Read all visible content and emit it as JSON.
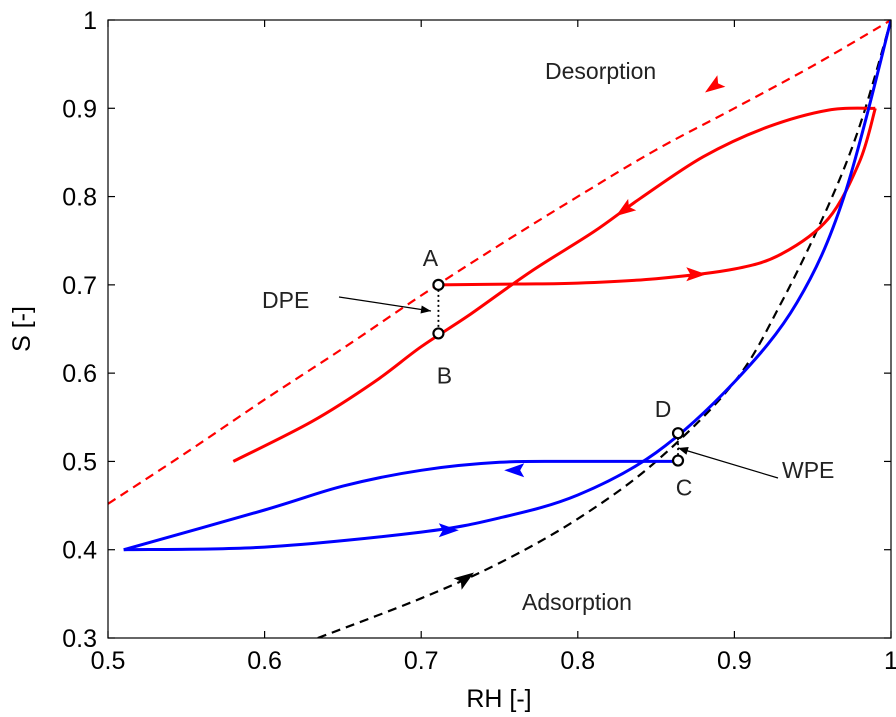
{
  "chart_data": {
    "type": "line",
    "xlabel": "RH [-]",
    "ylabel": "S [-]",
    "xlim": [
      0.5,
      1.0
    ],
    "ylim": [
      0.3,
      1.0
    ],
    "xticks": [
      0.5,
      0.6,
      0.7,
      0.8,
      0.9,
      1.0
    ],
    "yticks": [
      0.3,
      0.4,
      0.5,
      0.6,
      0.7,
      0.8,
      0.9,
      1.0
    ],
    "xtick_labels": [
      "0.5",
      "0.6",
      "0.7",
      "0.8",
      "0.9",
      "1"
    ],
    "ytick_labels": [
      "0.3",
      "0.4",
      "0.5",
      "0.6",
      "0.7",
      "0.8",
      "0.9",
      "1"
    ],
    "grid": false,
    "series": [
      {
        "key": "desorption",
        "color": "#ff0000",
        "style": "dashed",
        "points": [
          [
            0.5,
            0.452
          ],
          [
            0.55,
            0.51
          ],
          [
            0.6,
            0.57
          ],
          [
            0.65,
            0.628
          ],
          [
            0.7,
            0.688
          ],
          [
            0.75,
            0.745
          ],
          [
            0.8,
            0.8
          ],
          [
            0.85,
            0.853
          ],
          [
            0.9,
            0.9
          ],
          [
            0.95,
            0.948
          ],
          [
            1.0,
            1.0
          ]
        ],
        "arrow": {
          "at": [
            0.887,
            0.925
          ],
          "direction": "down-left"
        }
      },
      {
        "key": "adsorption",
        "color": "#000000",
        "style": "dashed",
        "points": [
          [
            0.634,
            0.3
          ],
          [
            0.7,
            0.345
          ],
          [
            0.75,
            0.385
          ],
          [
            0.8,
            0.435
          ],
          [
            0.85,
            0.5
          ],
          [
            0.9,
            0.59
          ],
          [
            0.93,
            0.68
          ],
          [
            0.96,
            0.79
          ],
          [
            0.98,
            0.88
          ],
          [
            1.0,
            1.0
          ]
        ],
        "arrow": {
          "at": [
            0.728,
            0.367
          ],
          "direction": "up-right"
        }
      },
      {
        "key": "drying-scanning",
        "color": "#ff0000",
        "style": "solid",
        "points": [
          [
            0.58,
            0.5
          ],
          [
            0.63,
            0.545
          ],
          [
            0.67,
            0.59
          ],
          [
            0.7,
            0.63
          ],
          [
            0.73,
            0.665
          ],
          [
            0.77,
            0.715
          ],
          [
            0.81,
            0.76
          ],
          [
            0.84,
            0.798
          ],
          [
            0.88,
            0.845
          ],
          [
            0.92,
            0.878
          ],
          [
            0.96,
            0.898
          ],
          [
            0.99,
            0.9
          ]
        ],
        "arrow": {
          "at": [
            0.83,
            0.785
          ],
          "direction": "down-left"
        }
      },
      {
        "key": "wetting-from-A",
        "color": "#ff0000",
        "style": "solid",
        "points": [
          [
            0.711,
            0.7
          ],
          [
            0.76,
            0.701
          ],
          [
            0.8,
            0.702
          ],
          [
            0.85,
            0.707
          ],
          [
            0.9,
            0.718
          ],
          [
            0.93,
            0.735
          ],
          [
            0.96,
            0.775
          ],
          [
            0.98,
            0.84
          ],
          [
            0.99,
            0.9
          ]
        ],
        "arrow": {
          "at": [
            0.875,
            0.712
          ],
          "direction": "right"
        }
      },
      {
        "key": "wetting-scanning",
        "color": "#0000ff",
        "style": "solid",
        "points": [
          [
            0.51,
            0.4
          ],
          [
            0.6,
            0.403
          ],
          [
            0.7,
            0.42
          ],
          [
            0.75,
            0.436
          ],
          [
            0.8,
            0.462
          ],
          [
            0.85,
            0.51
          ],
          [
            0.9,
            0.59
          ],
          [
            0.94,
            0.68
          ],
          [
            0.97,
            0.8
          ],
          [
            1.0,
            1.0
          ]
        ],
        "arrow": {
          "at": [
            0.717,
            0.422
          ],
          "direction": "right"
        }
      },
      {
        "key": "drying-from-C",
        "color": "#0000ff",
        "style": "solid",
        "points": [
          [
            0.864,
            0.5
          ],
          [
            0.8,
            0.5
          ],
          [
            0.75,
            0.499
          ],
          [
            0.7,
            0.49
          ],
          [
            0.65,
            0.472
          ],
          [
            0.6,
            0.445
          ],
          [
            0.51,
            0.4
          ]
        ],
        "arrow": {
          "at": [
            0.76,
            0.49
          ],
          "direction": "left"
        }
      }
    ],
    "markers": [
      {
        "label": "A",
        "x": 0.711,
        "y": 0.7
      },
      {
        "label": "B",
        "x": 0.711,
        "y": 0.645
      },
      {
        "label": "C",
        "x": 0.864,
        "y": 0.501
      },
      {
        "label": "D",
        "x": 0.864,
        "y": 0.532
      }
    ],
    "annotations": [
      {
        "key": "desorption",
        "text": "Desorption"
      },
      {
        "key": "adsorption",
        "text": "Adsorption"
      },
      {
        "key": "dpe",
        "text": "DPE"
      },
      {
        "key": "wpe",
        "text": "WPE"
      }
    ]
  }
}
